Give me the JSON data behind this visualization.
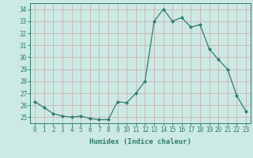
{
  "xlabel": "Humidex (Indice chaleur)",
  "x": [
    0,
    1,
    2,
    3,
    4,
    5,
    6,
    7,
    8,
    9,
    10,
    11,
    12,
    13,
    14,
    15,
    16,
    17,
    18,
    19,
    20,
    21,
    22,
    23
  ],
  "y": [
    26.3,
    25.8,
    25.3,
    25.1,
    25.0,
    25.1,
    24.9,
    24.8,
    24.8,
    26.3,
    26.2,
    27.0,
    28.0,
    33.0,
    34.0,
    33.0,
    33.3,
    32.5,
    32.7,
    30.7,
    29.8,
    29.0,
    26.8,
    25.5
  ],
  "line_color": "#2e7d6e",
  "marker": "D",
  "marker_size": 2.0,
  "bg_color": "#cce9e4",
  "grid_color": "#c8a8a8",
  "ylim": [
    24.5,
    34.5
  ],
  "yticks": [
    25,
    26,
    27,
    28,
    29,
    30,
    31,
    32,
    33,
    34
  ],
  "xticks": [
    0,
    1,
    2,
    3,
    4,
    5,
    6,
    7,
    8,
    9,
    10,
    11,
    12,
    13,
    14,
    15,
    16,
    17,
    18,
    19,
    20,
    21,
    22,
    23
  ],
  "tick_fontsize": 5.5,
  "xlabel_fontsize": 6.5,
  "axis_color": "#2e7d6e",
  "tick_color": "#2e7d6e"
}
